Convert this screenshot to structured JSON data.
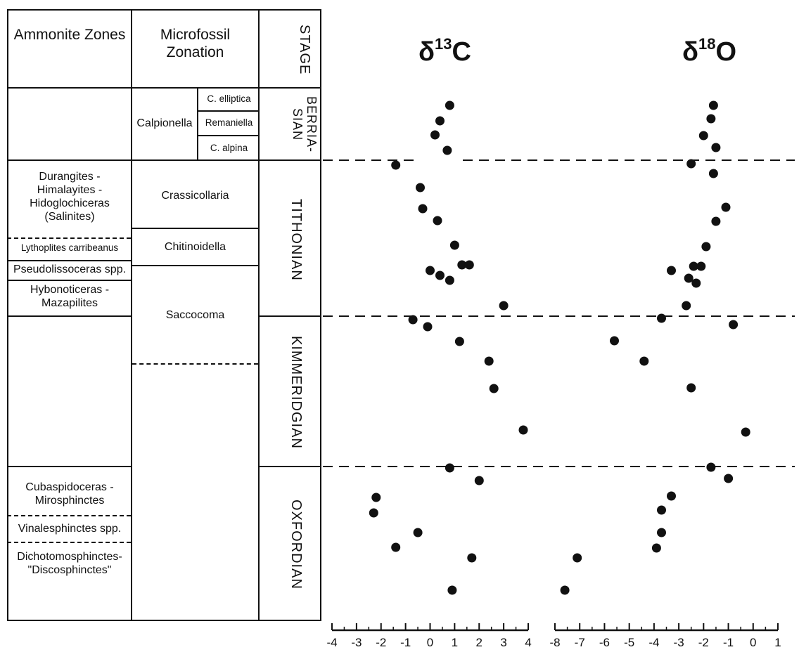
{
  "table": {
    "headers": {
      "ammonite": "Ammonite Zones",
      "microfossil": "Microfossil Zonation",
      "stage": "STAGE"
    },
    "ammonite_zones": {
      "durangites": "Durangites - Himalayites - Hidoglochiceras (Salinites)",
      "lythoplites": "Lythoplites carribeanus",
      "pseudolissoceras": "Pseudolissoceras spp.",
      "hybonoticeras": "Hybonoticeras - Mazapilites",
      "cubaspidoceras": "Cubaspidoceras - Mirosphinctes",
      "vinalesphinctes": "Vinalesphinctes spp.",
      "dichotomosphinctes": "Dichotomosphinctes- \"Discosphinctes\""
    },
    "microfossil_zones": {
      "calpionella": "Calpionella",
      "c_elliptica": "C. elliptica",
      "remaniella": "Remaniella",
      "c_alpina": "C. alpina",
      "crassicollaria": "Crassicollaria",
      "chitinoidella": "Chitinoidella",
      "saccocoma": "Saccocoma"
    },
    "stages": {
      "berriasian": "BERRIA- SIAN",
      "tithonian": "TITHONIAN",
      "kimmeridgian": "KIMMERIDGIAN",
      "oxfordian": "OXFORDIAN"
    }
  },
  "chart_data": [
    {
      "type": "scatter",
      "title": "δ13C",
      "title_base": "δ",
      "title_sup": "13",
      "title_element": "C",
      "xlim": [
        -4,
        4
      ],
      "xticks": [
        "-4",
        "-3",
        "-2",
        "-1",
        "0",
        "1",
        "2",
        "3",
        "4"
      ],
      "series": [
        {
          "points": [
            {
              "level": 150,
              "value": 0.8
            },
            {
              "level": 172,
              "value": 0.4
            },
            {
              "level": 192,
              "value": 0.2
            },
            {
              "level": 214,
              "value": 0.7
            },
            {
              "level": 235,
              "value": -1.4
            },
            {
              "level": 267,
              "value": -0.4
            },
            {
              "level": 297,
              "value": -0.3
            },
            {
              "level": 314,
              "value": 0.3
            },
            {
              "level": 349,
              "value": 1.0
            },
            {
              "level": 377,
              "value": 1.3
            },
            {
              "level": 377,
              "value": 1.6
            },
            {
              "level": 385,
              "value": 0.0
            },
            {
              "level": 392,
              "value": 0.4
            },
            {
              "level": 399,
              "value": 0.8
            },
            {
              "level": 435,
              "value": 3.0
            },
            {
              "level": 455,
              "value": -0.7
            },
            {
              "level": 465,
              "value": -0.1
            },
            {
              "level": 486,
              "value": 1.2
            },
            {
              "level": 514,
              "value": 2.4
            },
            {
              "level": 553,
              "value": 2.6
            },
            {
              "level": 612,
              "value": 3.8
            },
            {
              "level": 666,
              "value": 0.8
            },
            {
              "level": 684,
              "value": 2.0
            },
            {
              "level": 708,
              "value": -2.2
            },
            {
              "level": 730,
              "value": -2.3
            },
            {
              "level": 758,
              "value": -0.5
            },
            {
              "level": 779,
              "value": -1.4
            },
            {
              "level": 794,
              "value": 1.7
            },
            {
              "level": 840,
              "value": 0.9
            }
          ]
        }
      ]
    },
    {
      "type": "scatter",
      "title": "δ18O",
      "title_base": "δ",
      "title_sup": "18",
      "title_element": "O",
      "xlim": [
        -8,
        1
      ],
      "xticks": [
        "-8",
        "-7",
        "-6",
        "-5",
        "-4",
        "-3",
        "-2",
        "-1",
        "0",
        "1"
      ],
      "series": [
        {
          "points": [
            {
              "level": 150,
              "value": -1.6
            },
            {
              "level": 169,
              "value": -1.7
            },
            {
              "level": 193,
              "value": -2.0
            },
            {
              "level": 210,
              "value": -1.5
            },
            {
              "level": 233,
              "value": -2.5
            },
            {
              "level": 247,
              "value": -1.6
            },
            {
              "level": 295,
              "value": -1.1
            },
            {
              "level": 315,
              "value": -1.5
            },
            {
              "level": 351,
              "value": -1.9
            },
            {
              "level": 379,
              "value": -2.4
            },
            {
              "level": 379,
              "value": -2.1
            },
            {
              "level": 385,
              "value": -3.3
            },
            {
              "level": 396,
              "value": -2.6
            },
            {
              "level": 403,
              "value": -2.3
            },
            {
              "level": 435,
              "value": -2.7
            },
            {
              "level": 453,
              "value": -3.7
            },
            {
              "level": 462,
              "value": -0.8
            },
            {
              "level": 485,
              "value": -5.6
            },
            {
              "level": 514,
              "value": -4.4
            },
            {
              "level": 552,
              "value": -2.5
            },
            {
              "level": 615,
              "value": -0.3
            },
            {
              "level": 665,
              "value": -1.7
            },
            {
              "level": 681,
              "value": -1.0
            },
            {
              "level": 706,
              "value": -3.3
            },
            {
              "level": 726,
              "value": -3.7
            },
            {
              "level": 758,
              "value": -3.7
            },
            {
              "level": 780,
              "value": -3.9
            },
            {
              "level": 794,
              "value": -7.1
            },
            {
              "level": 840,
              "value": -7.6
            }
          ]
        }
      ]
    }
  ]
}
